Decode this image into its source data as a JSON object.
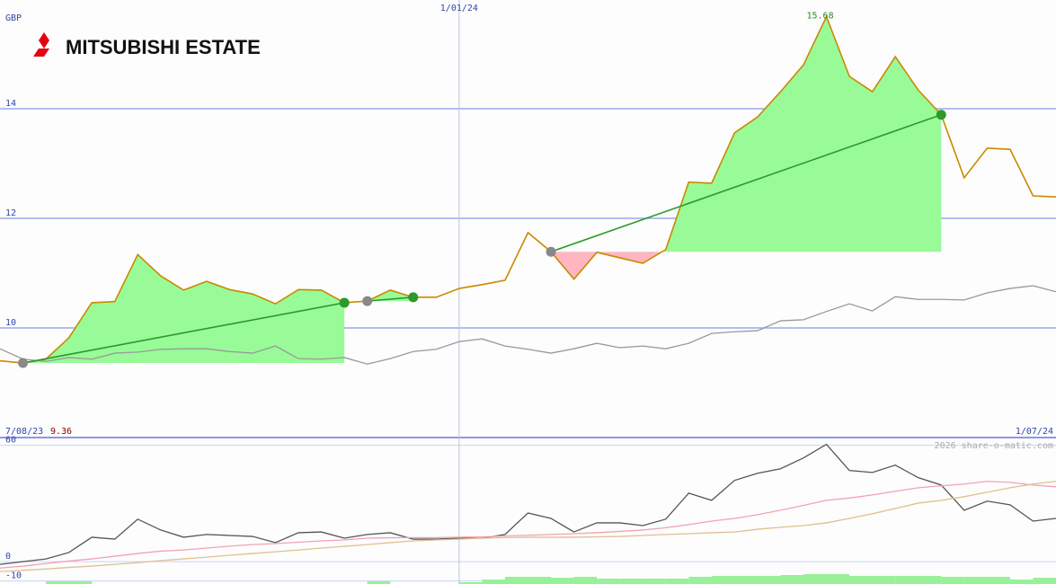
{
  "chart_data": [
    {
      "type": "line",
      "title": "MITSUBISHI ESTATE",
      "y_label": "GBP",
      "categories": [
        "7/08/23",
        null,
        null,
        null,
        null,
        null,
        null,
        null,
        null,
        null,
        null,
        null,
        null,
        null,
        null,
        null,
        null,
        null,
        null,
        null,
        "1/01/24",
        null,
        null,
        null,
        null,
        null,
        null,
        null,
        null,
        null,
        null,
        null,
        null,
        null,
        null,
        null,
        null,
        null,
        null,
        null,
        null,
        null,
        null,
        null,
        null,
        null,
        "1/07/24"
      ],
      "ylim": [
        8,
        16
      ],
      "yticks": [
        10,
        12,
        14
      ],
      "grid": true,
      "series": [
        {
          "color": "#cc8800",
          "values": [
            9.4,
            9.36,
            9.43,
            9.82,
            10.46,
            10.48,
            11.34,
            10.95,
            10.69,
            10.85,
            10.7,
            10.62,
            10.44,
            10.7,
            10.69,
            10.46,
            10.49,
            10.69,
            10.56,
            10.56,
            10.72,
            10.79,
            10.87,
            11.74,
            11.39,
            10.89,
            11.38,
            11.28,
            11.18,
            11.43,
            12.66,
            12.64,
            13.56,
            13.85,
            14.31,
            14.8,
            15.68,
            14.59,
            14.31,
            14.95,
            14.34,
            13.89,
            12.74,
            13.28,
            13.26,
            12.41,
            12.39
          ]
        },
        {
          "color": "#999999",
          "values": [
            9.62,
            9.43,
            9.39,
            9.46,
            9.43,
            9.54,
            9.56,
            9.61,
            9.62,
            9.62,
            9.57,
            9.54,
            9.67,
            9.44,
            9.43,
            9.46,
            9.34,
            9.44,
            9.57,
            9.61,
            9.75,
            9.8,
            9.67,
            9.61,
            9.54,
            9.62,
            9.72,
            9.64,
            9.67,
            9.62,
            9.72,
            9.9,
            9.93,
            9.95,
            10.13,
            10.15,
            10.3,
            10.44,
            10.31,
            10.57,
            10.52,
            10.52,
            10.51,
            10.64,
            10.72,
            10.77,
            10.66
          ]
        }
      ],
      "trades": [
        {
          "from": 1,
          "to": 15
        },
        {
          "from": 16,
          "to": 18
        },
        {
          "from": 24,
          "to": 41
        }
      ]
    },
    {
      "type": "line",
      "watermark": "2026 share-o-matic.com",
      "ylim": [
        -12,
        64
      ],
      "yticks": [
        60,
        0,
        -10
      ],
      "grid": true,
      "series": [
        {
          "color": "#555555",
          "values": [
            -1.4,
            0,
            1.4,
            4.7,
            12.6,
            11.6,
            21.9,
            16.3,
            12.6,
            14.0,
            13.5,
            13.0,
            9.8,
            14.9,
            15.3,
            12.1,
            14.0,
            14.9,
            11.6,
            11.6,
            12.1,
            12.1,
            14.0,
            25.1,
            22.3,
            15.3,
            20.0,
            20.0,
            18.6,
            21.9,
            35.3,
            31.6,
            41.9,
            45.6,
            47.9,
            53.5,
            60.5,
            47.0,
            46.0,
            49.8,
            43.3,
            39.5,
            26.5,
            31.2,
            29.3,
            20.9,
            22.3
          ]
        },
        {
          "color": "#f4a0b8",
          "values": [
            -3.3,
            -2.3,
            -1.0,
            0.3,
            1.4,
            2.8,
            4.2,
            5.4,
            6.0,
            7.0,
            8.0,
            8.8,
            9.3,
            10.0,
            10.7,
            11.2,
            12.1,
            12.3,
            12.4,
            12.4,
            12.6,
            12.8,
            13.2,
            13.6,
            14.0,
            14.4,
            14.9,
            15.6,
            16.3,
            17.5,
            19.1,
            20.9,
            22.3,
            24.2,
            26.5,
            29.0,
            31.6,
            32.8,
            34.4,
            36.3,
            38.1,
            39.1,
            40.0,
            41.4,
            40.9,
            39.5,
            38.6
          ]
        },
        {
          "color": "#e0c090",
          "values": [
            -5.1,
            -4.5,
            -3.8,
            -3.0,
            -2.3,
            -1.4,
            -0.5,
            0.5,
            1.4,
            2.3,
            3.3,
            4.2,
            5.1,
            6.0,
            7.0,
            7.9,
            8.8,
            9.8,
            10.7,
            11.2,
            11.6,
            12.1,
            12.4,
            12.6,
            12.6,
            12.6,
            12.8,
            13.0,
            13.5,
            14.0,
            14.4,
            14.9,
            15.3,
            16.7,
            17.7,
            18.6,
            20.0,
            22.3,
            24.7,
            27.4,
            30.2,
            31.6,
            33.5,
            35.8,
            38.1,
            40.0,
            41.4
          ]
        }
      ],
      "volume": {
        "color": "#98f098",
        "values": [
          0,
          0,
          3,
          3,
          0,
          0,
          0,
          0,
          0,
          0,
          0,
          0,
          0,
          0,
          0,
          0,
          3,
          0,
          0,
          0,
          2,
          5,
          8,
          8,
          7,
          8,
          6,
          6,
          6,
          6,
          8,
          9,
          9,
          9,
          10,
          11,
          11,
          9,
          9,
          9,
          9,
          8,
          8,
          8,
          5,
          7,
          8
        ]
      }
    }
  ]
}
